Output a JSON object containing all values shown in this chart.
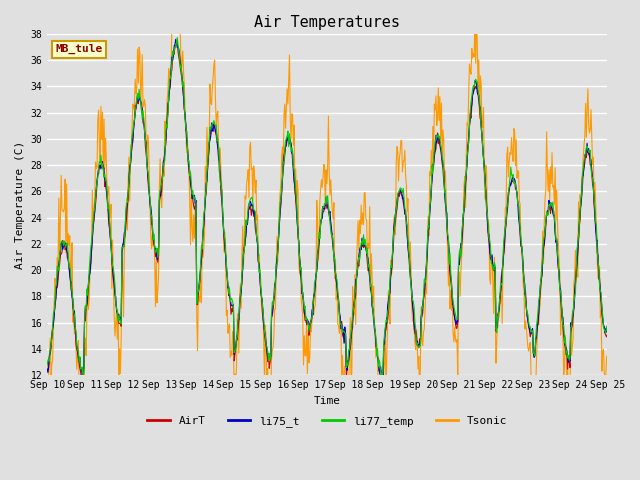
{
  "title": "Air Temperatures",
  "xlabel": "Time",
  "ylabel": "Air Temperature (C)",
  "station_label": "MB_tule",
  "ylim": [
    12,
    38
  ],
  "yticks": [
    12,
    14,
    16,
    18,
    20,
    22,
    24,
    26,
    28,
    30,
    32,
    34,
    36,
    38
  ],
  "n_days": 15,
  "xtick_labels": [
    "Sep 10",
    "Sep 11",
    "Sep 12",
    "Sep 13",
    "Sep 14",
    "Sep 15",
    "Sep 16",
    "Sep 17",
    "Sep 18",
    "Sep 19",
    "Sep 20",
    "Sep 21",
    "Sep 22",
    "Sep 23",
    "Sep 24",
    "Sep 25"
  ],
  "series_colors": {
    "AirT": "#cc0000",
    "li75_t": "#0000cc",
    "li77_temp": "#00cc00",
    "Tsonic": "#ff9900"
  },
  "series_labels": [
    "AirT",
    "li75_t",
    "li77_temp",
    "Tsonic"
  ],
  "background_color": "#e0e0e0",
  "grid_color": "#ffffff",
  "title_fontsize": 11,
  "axis_label_fontsize": 8,
  "tick_fontsize": 7,
  "legend_fontsize": 8,
  "station_box_facecolor": "#ffffcc",
  "station_box_edgecolor": "#cc9900",
  "station_text_color": "#880000",
  "day_bases": [
    17,
    22,
    27,
    31,
    24,
    19,
    23,
    20,
    17,
    20,
    23,
    27,
    21,
    19,
    22
  ],
  "day_amps": [
    5,
    6,
    6,
    6,
    7,
    6,
    7,
    5,
    5,
    6,
    7,
    7,
    6,
    6,
    7
  ],
  "tsonic_noise": 1.5,
  "tsonic_extra_amp": 2.5
}
